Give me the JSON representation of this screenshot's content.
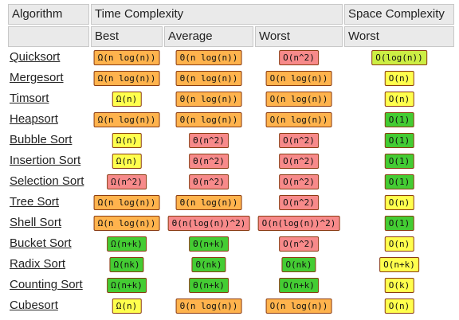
{
  "header": {
    "algorithm": "Algorithm",
    "time_complexity": "Time Complexity",
    "space_complexity": "Space Complexity",
    "best": "Best",
    "average": "Average",
    "worst": "Worst",
    "space_worst": "Worst"
  },
  "colors": {
    "orange": "#ffb34d",
    "red": "#f78a8a",
    "yellow": "#ffff4d",
    "green": "#44cc33",
    "lime": "#ccee44"
  },
  "rows": [
    {
      "name": "Quicksort",
      "best": "Ω(n log(n))",
      "best_c": "orange",
      "avg": "Θ(n log(n))",
      "avg_c": "orange",
      "worst": "O(n^2)",
      "worst_c": "red",
      "space": "O(log(n))",
      "space_c": "lime"
    },
    {
      "name": "Mergesort",
      "best": "Ω(n log(n))",
      "best_c": "orange",
      "avg": "Θ(n log(n))",
      "avg_c": "orange",
      "worst": "O(n log(n))",
      "worst_c": "orange",
      "space": "O(n)",
      "space_c": "yellow"
    },
    {
      "name": "Timsort",
      "best": "Ω(n)",
      "best_c": "yellow",
      "avg": "Θ(n log(n))",
      "avg_c": "orange",
      "worst": "O(n log(n))",
      "worst_c": "orange",
      "space": "O(n)",
      "space_c": "yellow"
    },
    {
      "name": "Heapsort",
      "best": "Ω(n log(n))",
      "best_c": "orange",
      "avg": "Θ(n log(n))",
      "avg_c": "orange",
      "worst": "O(n log(n))",
      "worst_c": "orange",
      "space": "O(1)",
      "space_c": "green"
    },
    {
      "name": "Bubble Sort",
      "best": "Ω(n)",
      "best_c": "yellow",
      "avg": "Θ(n^2)",
      "avg_c": "red",
      "worst": "O(n^2)",
      "worst_c": "red",
      "space": "O(1)",
      "space_c": "green"
    },
    {
      "name": "Insertion Sort",
      "best": "Ω(n)",
      "best_c": "yellow",
      "avg": "Θ(n^2)",
      "avg_c": "red",
      "worst": "O(n^2)",
      "worst_c": "red",
      "space": "O(1)",
      "space_c": "green"
    },
    {
      "name": "Selection Sort",
      "best": "Ω(n^2)",
      "best_c": "red",
      "avg": "Θ(n^2)",
      "avg_c": "red",
      "worst": "O(n^2)",
      "worst_c": "red",
      "space": "O(1)",
      "space_c": "green"
    },
    {
      "name": "Tree Sort",
      "best": "Ω(n log(n))",
      "best_c": "orange",
      "avg": "Θ(n log(n))",
      "avg_c": "orange",
      "worst": "O(n^2)",
      "worst_c": "red",
      "space": "O(n)",
      "space_c": "yellow"
    },
    {
      "name": "Shell Sort",
      "best": "Ω(n log(n))",
      "best_c": "orange",
      "avg": "Θ(n(log(n))^2)",
      "avg_c": "red",
      "worst": "O(n(log(n))^2)",
      "worst_c": "red",
      "space": "O(1)",
      "space_c": "green"
    },
    {
      "name": "Bucket Sort",
      "best": "Ω(n+k)",
      "best_c": "green",
      "avg": "Θ(n+k)",
      "avg_c": "green",
      "worst": "O(n^2)",
      "worst_c": "red",
      "space": "O(n)",
      "space_c": "yellow"
    },
    {
      "name": "Radix Sort",
      "best": "Ω(nk)",
      "best_c": "green",
      "avg": "Θ(nk)",
      "avg_c": "green",
      "worst": "O(nk)",
      "worst_c": "green",
      "space": "O(n+k)",
      "space_c": "yellow"
    },
    {
      "name": "Counting Sort",
      "best": "Ω(n+k)",
      "best_c": "green",
      "avg": "Θ(n+k)",
      "avg_c": "green",
      "worst": "O(n+k)",
      "worst_c": "green",
      "space": "O(k)",
      "space_c": "yellow"
    },
    {
      "name": "Cubesort",
      "best": "Ω(n)",
      "best_c": "yellow",
      "avg": "Θ(n log(n))",
      "avg_c": "orange",
      "worst": "O(n log(n))",
      "worst_c": "orange",
      "space": "O(n)",
      "space_c": "yellow"
    }
  ]
}
